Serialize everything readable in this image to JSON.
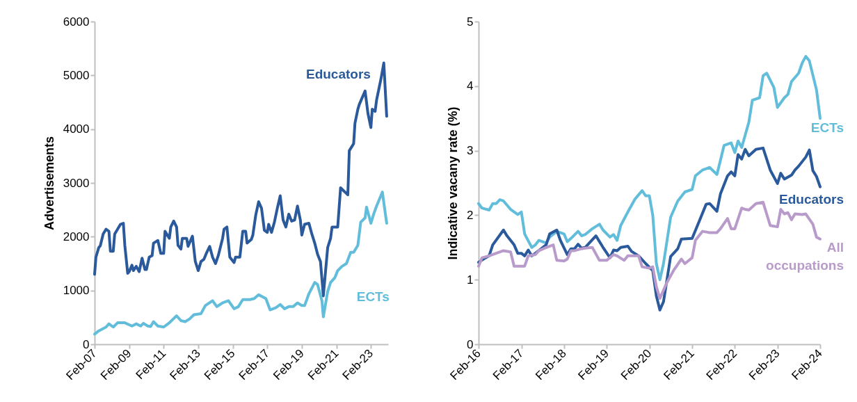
{
  "chart_data": [
    {
      "type": "line",
      "ylabel": "Advertisements",
      "xlim": [
        "2007-02-01",
        "2024-02-01"
      ],
      "ylim": [
        0,
        6000
      ],
      "yticks": [
        0,
        1000,
        2000,
        3000,
        4000,
        5000,
        6000
      ],
      "xticks": [
        {
          "value": "2007-02-01",
          "label": "Feb-07"
        },
        {
          "value": "2009-02-01",
          "label": "Feb-09"
        },
        {
          "value": "2011-02-01",
          "label": "Feb-11"
        },
        {
          "value": "2013-02-01",
          "label": "Feb-13"
        },
        {
          "value": "2015-02-01",
          "label": "Feb-15"
        },
        {
          "value": "2017-02-01",
          "label": "Feb-17"
        },
        {
          "value": "2019-02-01",
          "label": "Feb-19"
        },
        {
          "value": "2021-02-01",
          "label": "Feb-21"
        },
        {
          "value": "2023-02-01",
          "label": "Feb-23"
        }
      ],
      "grid": false,
      "legend": false,
      "marker": "none",
      "line_style": "solid",
      "series": [
        {
          "name": "Educators",
          "color": "#2a5a9b",
          "x": [
            "2007-02",
            "2007-03",
            "2007-05",
            "2007-06",
            "2007-08",
            "2007-10",
            "2007-12",
            "2008-01",
            "2008-03",
            "2008-04",
            "2008-06",
            "2008-08",
            "2008-10",
            "2008-11",
            "2009-01",
            "2009-02",
            "2009-04",
            "2009-05",
            "2009-07",
            "2009-09",
            "2009-11",
            "2010-01",
            "2010-02",
            "2010-04",
            "2010-06",
            "2010-07",
            "2010-10",
            "2010-12",
            "2011-02",
            "2011-03",
            "2011-06",
            "2011-07",
            "2011-09",
            "2011-11",
            "2011-12",
            "2012-02",
            "2012-03",
            "2012-06",
            "2012-07",
            "2012-10",
            "2012-12",
            "2013-02",
            "2013-04",
            "2013-06",
            "2013-08",
            "2013-10",
            "2013-12",
            "2014-02",
            "2014-04",
            "2014-07",
            "2014-08",
            "2014-10",
            "2014-12",
            "2015-03",
            "2015-04",
            "2015-07",
            "2015-09",
            "2015-11",
            "2015-12",
            "2016-03",
            "2016-04",
            "2016-06",
            "2016-08",
            "2016-10",
            "2016-12",
            "2017-02",
            "2017-03",
            "2017-05",
            "2017-07",
            "2017-09",
            "2017-11",
            "2018-01",
            "2018-03",
            "2018-05",
            "2018-07",
            "2018-09",
            "2018-11",
            "2019-01",
            "2019-02",
            "2019-04",
            "2019-07",
            "2019-09",
            "2019-11",
            "2020-01",
            "2020-03",
            "2020-05",
            "2020-08",
            "2020-10",
            "2020-11",
            "2021-03",
            "2021-05",
            "2021-08",
            "2021-10",
            "2021-11",
            "2022-02",
            "2022-03",
            "2022-05",
            "2022-06",
            "2022-10",
            "2022-12",
            "2023-02",
            "2023-03",
            "2023-05",
            "2023-06",
            "2023-09",
            "2023-11",
            "2024-01"
          ],
          "values": [
            1300,
            1620,
            1800,
            1830,
            2050,
            2140,
            2100,
            1730,
            1730,
            2050,
            2140,
            2230,
            2250,
            1840,
            1320,
            1350,
            1470,
            1370,
            1450,
            1350,
            1600,
            1390,
            1390,
            1620,
            1650,
            1880,
            1930,
            1690,
            1690,
            2100,
            1970,
            2180,
            2290,
            2180,
            1840,
            1770,
            1970,
            1970,
            1820,
            2010,
            1540,
            1370,
            1540,
            1580,
            1710,
            1820,
            1620,
            1500,
            1650,
            1970,
            2140,
            2180,
            1620,
            1520,
            1620,
            1620,
            2100,
            2100,
            1880,
            1950,
            2030,
            2400,
            2650,
            2530,
            2120,
            2080,
            2230,
            2080,
            2270,
            2530,
            2760,
            2310,
            2180,
            2420,
            2290,
            2310,
            2570,
            2310,
            2030,
            2230,
            2250,
            2050,
            1880,
            1670,
            1540,
            900,
            1800,
            1970,
            2180,
            2180,
            2910,
            2830,
            2780,
            3600,
            3730,
            4110,
            4370,
            4460,
            4710,
            4290,
            4030,
            4370,
            4330,
            4540,
            4930,
            5230,
            4240
          ]
        },
        {
          "name": "ECTs",
          "color": "#62bddb",
          "x": [
            "2007-02",
            "2007-05",
            "2007-10",
            "2007-12",
            "2008-03",
            "2008-06",
            "2008-11",
            "2009-04",
            "2009-07",
            "2009-10",
            "2009-12",
            "2010-03",
            "2010-05",
            "2010-07",
            "2010-10",
            "2011-02",
            "2011-06",
            "2011-11",
            "2012-02",
            "2012-05",
            "2012-08",
            "2012-11",
            "2013-04",
            "2013-07",
            "2013-12",
            "2014-03",
            "2014-07",
            "2014-11",
            "2015-03",
            "2015-06",
            "2015-09",
            "2016-02",
            "2016-05",
            "2016-08",
            "2017-01",
            "2017-04",
            "2017-08",
            "2017-11",
            "2018-02",
            "2018-05",
            "2018-08",
            "2018-11",
            "2019-02",
            "2019-04",
            "2019-07",
            "2019-11",
            "2020-01",
            "2020-04",
            "2020-05",
            "2020-08",
            "2020-10",
            "2021-01",
            "2021-03",
            "2021-06",
            "2021-09",
            "2021-12",
            "2022-02",
            "2022-05",
            "2022-07",
            "2022-10",
            "2022-11",
            "2023-02",
            "2023-04",
            "2023-06",
            "2023-10",
            "2024-01"
          ],
          "values": [
            190,
            250,
            320,
            380,
            320,
            400,
            400,
            340,
            380,
            340,
            390,
            340,
            330,
            420,
            340,
            320,
            400,
            530,
            440,
            420,
            470,
            550,
            570,
            720,
            810,
            700,
            770,
            810,
            660,
            700,
            830,
            830,
            850,
            920,
            850,
            640,
            680,
            740,
            660,
            700,
            700,
            770,
            720,
            720,
            940,
            1150,
            1110,
            810,
            510,
            980,
            1150,
            1240,
            1370,
            1450,
            1500,
            1710,
            1710,
            1840,
            2270,
            2350,
            2550,
            2250,
            2420,
            2570,
            2830,
            2250
          ]
        }
      ]
    },
    {
      "type": "line",
      "ylabel": "Indicative vacany rate (%)",
      "xlim": [
        "2016-02-01",
        "2024-02-01"
      ],
      "ylim": [
        0,
        5
      ],
      "yticks": [
        0,
        1,
        2,
        3,
        4,
        5
      ],
      "xticks": [
        {
          "value": "2016-02-01",
          "label": "Feb-16"
        },
        {
          "value": "2017-02-01",
          "label": "Feb-17"
        },
        {
          "value": "2018-02-01",
          "label": "Feb-18"
        },
        {
          "value": "2019-02-01",
          "label": "Feb-19"
        },
        {
          "value": "2020-02-01",
          "label": "Feb-20"
        },
        {
          "value": "2021-02-01",
          "label": "Feb-21"
        },
        {
          "value": "2022-02-01",
          "label": "Feb-22"
        },
        {
          "value": "2023-02-01",
          "label": "Feb-23"
        },
        {
          "value": "2024-02-01",
          "label": "Feb-24"
        }
      ],
      "grid": false,
      "legend": false,
      "marker": "none",
      "line_style": "solid",
      "series": [
        {
          "name": "ECTs",
          "color": "#62bddb",
          "x": [
            "2016-02",
            "2016-03",
            "2016-05",
            "2016-06",
            "2016-07",
            "2016-08",
            "2016-09",
            "2016-11",
            "2017-01",
            "2017-02",
            "2017-03",
            "2017-05",
            "2017-06",
            "2017-07",
            "2017-09",
            "2017-10",
            "2017-12",
            "2018-02",
            "2018-03",
            "2018-04",
            "2018-06",
            "2018-07",
            "2018-08",
            "2018-10",
            "2018-12",
            "2019-01",
            "2019-03",
            "2019-04",
            "2019-05",
            "2019-06",
            "2019-08",
            "2019-10",
            "2019-12",
            "2020-01",
            "2020-02",
            "2020-03",
            "2020-04",
            "2020-05",
            "2020-06",
            "2020-08",
            "2020-10",
            "2020-12",
            "2021-02",
            "2021-03",
            "2021-05",
            "2021-07",
            "2021-09",
            "2021-11",
            "2022-01",
            "2022-02",
            "2022-03",
            "2022-04",
            "2022-06",
            "2022-07",
            "2022-09",
            "2022-10",
            "2022-11",
            "2023-01",
            "2023-02",
            "2023-04",
            "2023-05",
            "2023-06",
            "2023-08",
            "2023-09",
            "2023-10",
            "2023-11",
            "2024-01",
            "2024-02"
          ],
          "values": [
            2.18,
            2.11,
            2.08,
            2.18,
            2.18,
            2.24,
            2.22,
            2.09,
            2.01,
            2.05,
            1.71,
            1.5,
            1.54,
            1.61,
            1.57,
            1.66,
            1.75,
            1.71,
            1.59,
            1.64,
            1.75,
            1.68,
            1.7,
            1.79,
            1.86,
            1.77,
            1.66,
            1.7,
            1.61,
            1.84,
            2.05,
            2.25,
            2.38,
            2.3,
            2.3,
            2.0,
            1.25,
            1.0,
            1.25,
            1.97,
            2.22,
            2.36,
            2.4,
            2.61,
            2.7,
            2.74,
            2.63,
            3.08,
            3.12,
            2.97,
            3.15,
            3.05,
            3.44,
            3.78,
            3.82,
            4.16,
            4.2,
            3.98,
            3.67,
            3.82,
            3.87,
            4.07,
            4.2,
            4.36,
            4.46,
            4.39,
            3.94,
            3.5
          ]
        },
        {
          "name": "Educators",
          "color": "#2a5a9b",
          "x": [
            "2016-02",
            "2016-04",
            "2016-05",
            "2016-06",
            "2016-09",
            "2016-10",
            "2016-12",
            "2017-01",
            "2017-02",
            "2017-03",
            "2017-04",
            "2017-05",
            "2017-06",
            "2017-09",
            "2017-10",
            "2017-12",
            "2018-01",
            "2018-03",
            "2018-04",
            "2018-05",
            "2018-06",
            "2018-07",
            "2018-08",
            "2018-10",
            "2018-11",
            "2019-01",
            "2019-03",
            "2019-04",
            "2019-05",
            "2019-06",
            "2019-08",
            "2019-09",
            "2019-11",
            "2020-01",
            "2020-03",
            "2020-04",
            "2020-05",
            "2020-06",
            "2020-08",
            "2020-10",
            "2020-11",
            "2021-02",
            "2021-04",
            "2021-06",
            "2021-07",
            "2021-09",
            "2021-10",
            "2021-12",
            "2022-01",
            "2022-02",
            "2022-03",
            "2022-04",
            "2022-05",
            "2022-06",
            "2022-08",
            "2022-10",
            "2022-12",
            "2023-02",
            "2023-03",
            "2023-04",
            "2023-06",
            "2023-07",
            "2023-08",
            "2023-10",
            "2023-11",
            "2023-12",
            "2024-01",
            "2024-02"
          ],
          "values": [
            1.27,
            1.34,
            1.37,
            1.54,
            1.77,
            1.68,
            1.54,
            1.41,
            1.41,
            1.37,
            1.46,
            1.37,
            1.41,
            1.54,
            1.71,
            1.77,
            1.61,
            1.39,
            1.48,
            1.48,
            1.55,
            1.49,
            1.5,
            1.62,
            1.68,
            1.5,
            1.34,
            1.46,
            1.45,
            1.5,
            1.52,
            1.44,
            1.37,
            1.25,
            1.14,
            0.75,
            0.53,
            0.66,
            1.36,
            1.48,
            1.63,
            1.64,
            1.9,
            2.17,
            2.18,
            2.06,
            2.33,
            2.61,
            2.67,
            2.61,
            2.94,
            2.87,
            3.02,
            2.92,
            3.02,
            3.04,
            2.7,
            2.49,
            2.65,
            2.56,
            2.62,
            2.7,
            2.76,
            2.9,
            3.01,
            2.69,
            2.6,
            2.44
          ]
        },
        {
          "name": "All occupations",
          "color": "#b99bcb",
          "x": [
            "2016-02",
            "2016-03",
            "2016-05",
            "2016-07",
            "2016-09",
            "2016-11",
            "2016-12",
            "2017-03",
            "2017-04",
            "2017-06",
            "2017-07",
            "2017-09",
            "2017-11",
            "2017-12",
            "2018-02",
            "2018-03",
            "2018-04",
            "2018-05",
            "2018-07",
            "2018-08",
            "2018-10",
            "2018-12",
            "2019-02",
            "2019-04",
            "2019-05",
            "2019-07",
            "2019-08",
            "2019-09",
            "2019-11",
            "2019-12",
            "2020-02",
            "2020-03",
            "2020-04",
            "2020-05",
            "2020-07",
            "2020-09",
            "2020-11",
            "2020-12",
            "2021-02",
            "2021-03",
            "2021-05",
            "2021-07",
            "2021-09",
            "2021-10",
            "2021-12",
            "2022-01",
            "2022-02",
            "2022-04",
            "2022-05",
            "2022-06",
            "2022-08",
            "2022-10",
            "2022-12",
            "2023-02",
            "2023-03",
            "2023-04",
            "2023-05",
            "2023-06",
            "2023-07",
            "2023-09",
            "2023-10",
            "2023-12",
            "2024-01",
            "2024-02"
          ],
          "values": [
            1.21,
            1.34,
            1.37,
            1.41,
            1.45,
            1.43,
            1.21,
            1.21,
            1.37,
            1.39,
            1.45,
            1.5,
            1.54,
            1.3,
            1.29,
            1.32,
            1.45,
            1.45,
            1.48,
            1.49,
            1.5,
            1.3,
            1.3,
            1.39,
            1.37,
            1.3,
            1.37,
            1.37,
            1.37,
            1.2,
            1.18,
            1.2,
            0.89,
            0.71,
            0.96,
            1.16,
            1.32,
            1.25,
            1.34,
            1.61,
            1.75,
            1.73,
            1.73,
            1.79,
            1.95,
            1.79,
            1.79,
            2.11,
            2.09,
            2.08,
            2.18,
            2.2,
            1.84,
            1.82,
            2.09,
            2.02,
            2.04,
            1.93,
            2.02,
            2.01,
            2.02,
            1.86,
            1.66,
            1.63
          ]
        }
      ]
    }
  ]
}
